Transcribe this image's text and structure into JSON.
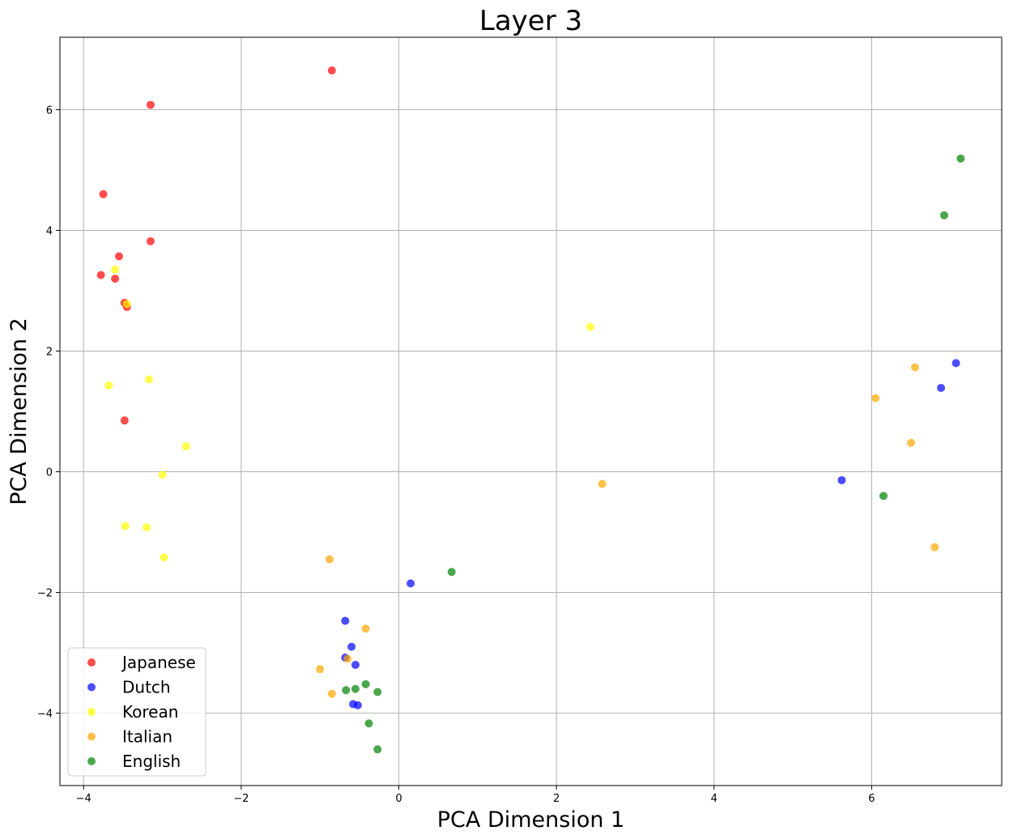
{
  "chart_data": {
    "type": "scatter",
    "title": "Layer 3",
    "xlabel": "PCA Dimension 1",
    "ylabel": "PCA Dimension 2",
    "xlim": [
      -4.3,
      7.65
    ],
    "ylim": [
      -5.2,
      7.2
    ],
    "xticks": [
      -4,
      -2,
      0,
      2,
      4,
      6
    ],
    "yticks": [
      -4,
      -2,
      0,
      2,
      4,
      6
    ],
    "grid": true,
    "legend_position": "lower-left",
    "series": [
      {
        "name": "Japanese",
        "color": "#ff0000",
        "points": [
          [
            -0.85,
            6.65
          ],
          [
            -3.15,
            6.08
          ],
          [
            -3.75,
            4.6
          ],
          [
            -3.15,
            3.82
          ],
          [
            -3.55,
            3.57
          ],
          [
            -3.78,
            3.26
          ],
          [
            -3.6,
            3.2
          ],
          [
            -3.48,
            2.8
          ],
          [
            -3.45,
            2.73
          ],
          [
            -3.48,
            0.85
          ]
        ]
      },
      {
        "name": "Dutch",
        "color": "#0000ff",
        "points": [
          [
            7.07,
            1.8
          ],
          [
            6.88,
            1.39
          ],
          [
            5.62,
            -0.14
          ],
          [
            0.15,
            -1.85
          ],
          [
            -0.68,
            -2.47
          ],
          [
            -0.6,
            -2.9
          ],
          [
            -0.68,
            -3.08
          ],
          [
            -0.55,
            -3.2
          ],
          [
            -0.58,
            -3.85
          ],
          [
            -0.52,
            -3.87
          ]
        ]
      },
      {
        "name": "Korean",
        "color": "#ffff00",
        "points": [
          [
            2.43,
            2.4
          ],
          [
            -3.6,
            3.35
          ],
          [
            -3.45,
            2.78
          ],
          [
            -3.68,
            1.43
          ],
          [
            -3.17,
            1.53
          ],
          [
            -2.7,
            0.42
          ],
          [
            -3.0,
            -0.05
          ],
          [
            -3.47,
            -0.9
          ],
          [
            -3.2,
            -0.92
          ],
          [
            -2.98,
            -1.42
          ]
        ]
      },
      {
        "name": "Italian",
        "color": "#ffa500",
        "points": [
          [
            6.55,
            1.73
          ],
          [
            6.05,
            1.22
          ],
          [
            6.5,
            0.48
          ],
          [
            2.58,
            -0.2
          ],
          [
            6.8,
            -1.25
          ],
          [
            -0.88,
            -1.45
          ],
          [
            -0.42,
            -2.6
          ],
          [
            -1.0,
            -3.27
          ],
          [
            -0.65,
            -3.1
          ],
          [
            -0.85,
            -3.68
          ]
        ]
      },
      {
        "name": "English",
        "color": "#008000",
        "points": [
          [
            7.13,
            5.19
          ],
          [
            6.92,
            4.25
          ],
          [
            6.15,
            -0.4
          ],
          [
            0.67,
            -1.66
          ],
          [
            -0.42,
            -3.52
          ],
          [
            -0.55,
            -3.6
          ],
          [
            -0.67,
            -3.62
          ],
          [
            -0.27,
            -3.65
          ],
          [
            -0.38,
            -4.17
          ],
          [
            -0.27,
            -4.6
          ]
        ]
      }
    ]
  }
}
